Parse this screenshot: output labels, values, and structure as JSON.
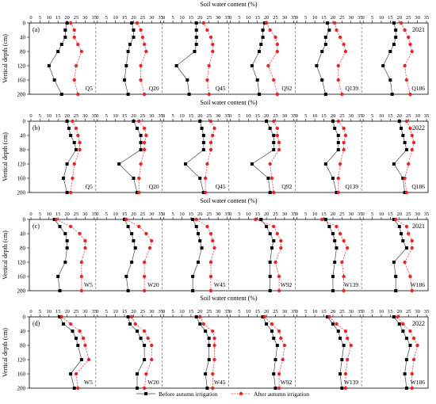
{
  "figure": {
    "x_axis_title": "Soil water content (%)",
    "y_axis_title": "Vertical depth (cm)",
    "x_ticks": [
      "0",
      "5",
      "10",
      "15",
      "20",
      "25",
      "30",
      "35"
    ],
    "y_ticks": [
      "0",
      "40",
      "80",
      "120",
      "160",
      "200"
    ],
    "legend": {
      "before": "Before autumn irrigation",
      "after": "After autumn irrigation"
    },
    "colors": {
      "before": "#000000",
      "after": "#e8262a",
      "divider": "#555555"
    }
  },
  "chart_data": {
    "type": "line",
    "xlim": [
      0,
      35
    ],
    "ylim": [
      0,
      200
    ],
    "y_inverted": true,
    "depths": [
      0,
      20,
      40,
      60,
      80,
      120,
      160,
      200
    ],
    "rows": [
      {
        "label": "(a)",
        "year": "2021",
        "panels": [
          {
            "name": "Q5",
            "before": [
              20,
              19,
              19,
              17,
              15,
              10,
              13,
              17
            ],
            "after": [
              22,
              24,
              24,
              26,
              28,
              25,
              24,
              26
            ]
          },
          {
            "name": "Q20",
            "before": [
              19,
              20,
              20,
              18,
              17,
              16,
              15,
              17
            ],
            "after": [
              22,
              24,
              25,
              26,
              27,
              24,
              24,
              26
            ]
          },
          {
            "name": "Q45",
            "before": [
              18,
              18,
              18,
              18,
              17,
              7,
              13,
              14
            ],
            "after": [
              22,
              24,
              26,
              27,
              27,
              25,
              24,
              25
            ]
          },
          {
            "name": "Q92",
            "before": [
              19,
              18,
              18,
              17,
              16,
              12,
              15,
              16
            ],
            "after": [
              20,
              22,
              25,
              26,
              26,
              21,
              24,
              26
            ]
          },
          {
            "name": "Q139",
            "before": [
              17,
              18,
              16,
              16,
              14,
              11,
              14,
              16
            ],
            "after": [
              21,
              22,
              24,
              26,
              27,
              23,
              23,
              25
            ]
          },
          {
            "name": "Q186",
            "before": [
              17,
              18,
              18,
              17,
              15,
              11,
              15,
              16
            ],
            "after": [
              21,
              23,
              25,
              26,
              27,
              23,
              24,
              26
            ]
          }
        ]
      },
      {
        "label": "(b)",
        "year": "2022",
        "panels": [
          {
            "name": "Q5",
            "before": [
              20,
              21,
              22,
              24,
              25,
              20,
              18,
              20
            ],
            "after": [
              23,
              25,
              26,
              27,
              27,
              24,
              23,
              22
            ]
          },
          {
            "name": "Q20",
            "before": [
              20,
              22,
              24,
              24,
              24,
              12,
              20,
              22
            ],
            "after": [
              23,
              26,
              27,
              26,
              26,
              24,
              23,
              23
            ]
          },
          {
            "name": "Q45",
            "before": [
              20,
              21,
              22,
              22,
              22,
              12,
              20,
              22
            ],
            "after": [
              26,
              28,
              27,
              26,
              26,
              24,
              23,
              23
            ]
          },
          {
            "name": "Q92",
            "before": [
              20,
              22,
              24,
              24,
              24,
              12,
              21,
              22
            ],
            "after": [
              24,
              26,
              26,
              27,
              27,
              22,
              23,
              24
            ]
          },
          {
            "name": "Q139",
            "before": [
              20,
              21,
              23,
              23,
              23,
              16,
              20,
              22
            ],
            "after": [
              23,
              26,
              27,
              26,
              26,
              24,
              23,
              23
            ]
          },
          {
            "name": "Q186",
            "before": [
              20,
              21,
              22,
              23,
              24,
              17,
              22,
              23
            ],
            "after": [
              24,
              26,
              27,
              28,
              27,
              25,
              23,
              24
            ]
          }
        ]
      },
      {
        "label": "(c)",
        "year": "2021",
        "panels": [
          {
            "name": "W5",
            "before": [
              13,
              16,
              19,
              20,
              20,
              19,
              15,
              16
            ],
            "after": [
              14,
              22,
              27,
              30,
              30,
              28,
              28,
              28
            ]
          },
          {
            "name": "W20",
            "before": [
              15,
              17,
              19,
              20,
              21,
              19,
              16,
              17
            ],
            "after": [
              16,
              23,
              27,
              30,
              29,
              26,
              26,
              26
            ]
          },
          {
            "name": "W45",
            "before": [
              16,
              18,
              19,
              20,
              21,
              19,
              16,
              16
            ],
            "after": [
              18,
              24,
              26,
              27,
              28,
              26,
              26,
              26
            ]
          },
          {
            "name": "W92",
            "before": [
              17,
              20,
              22,
              24,
              23,
              22,
              22,
              22
            ],
            "after": [
              14,
              24,
              26,
              28,
              28,
              25,
              27,
              27
            ]
          },
          {
            "name": "W139",
            "before": [
              16,
              18,
              20,
              21,
              22,
              21,
              20,
              20
            ],
            "after": [
              14,
              22,
              24,
              26,
              28,
              25,
              26,
              26
            ]
          },
          {
            "name": "W186",
            "before": [
              17,
              20,
              21,
              22,
              24,
              17,
              18,
              18
            ],
            "after": [
              18,
              24,
              25,
              27,
              27,
              23,
              26,
              27
            ]
          }
        ]
      },
      {
        "label": "(d)",
        "year": "2022",
        "panels": [
          {
            "name": "W5",
            "before": [
              16,
              18,
              23,
              25,
              26,
              28,
              22,
              24
            ],
            "after": [
              17,
              22,
              27,
              29,
              30,
              32,
              25,
              26
            ]
          },
          {
            "name": "W20",
            "before": [
              17,
              18,
              22,
              24,
              26,
              26,
              22,
              22
            ],
            "after": [
              19,
              21,
              26,
              28,
              30,
              30,
              27,
              26
            ]
          },
          {
            "name": "W45",
            "before": [
              18,
              20,
              23,
              25,
              25,
              25,
              23,
              24
            ],
            "after": [
              20,
              22,
              27,
              28,
              28,
              28,
              27,
              27
            ]
          },
          {
            "name": "W92",
            "before": [
              18,
              20,
              23,
              24,
              26,
              25,
              24,
              25
            ],
            "after": [
              19,
              23,
              27,
              28,
              30,
              29,
              27,
              27
            ]
          },
          {
            "name": "W139",
            "before": [
              17,
              20,
              23,
              24,
              26,
              25,
              24,
              25
            ],
            "after": [
              18,
              22,
              27,
              28,
              30,
              28,
              27,
              27
            ]
          },
          {
            "name": "W186",
            "before": [
              17,
              20,
              22,
              24,
              26,
              24,
              23,
              24
            ],
            "after": [
              19,
              22,
              26,
              28,
              30,
              28,
              27,
              27
            ]
          }
        ]
      }
    ]
  }
}
